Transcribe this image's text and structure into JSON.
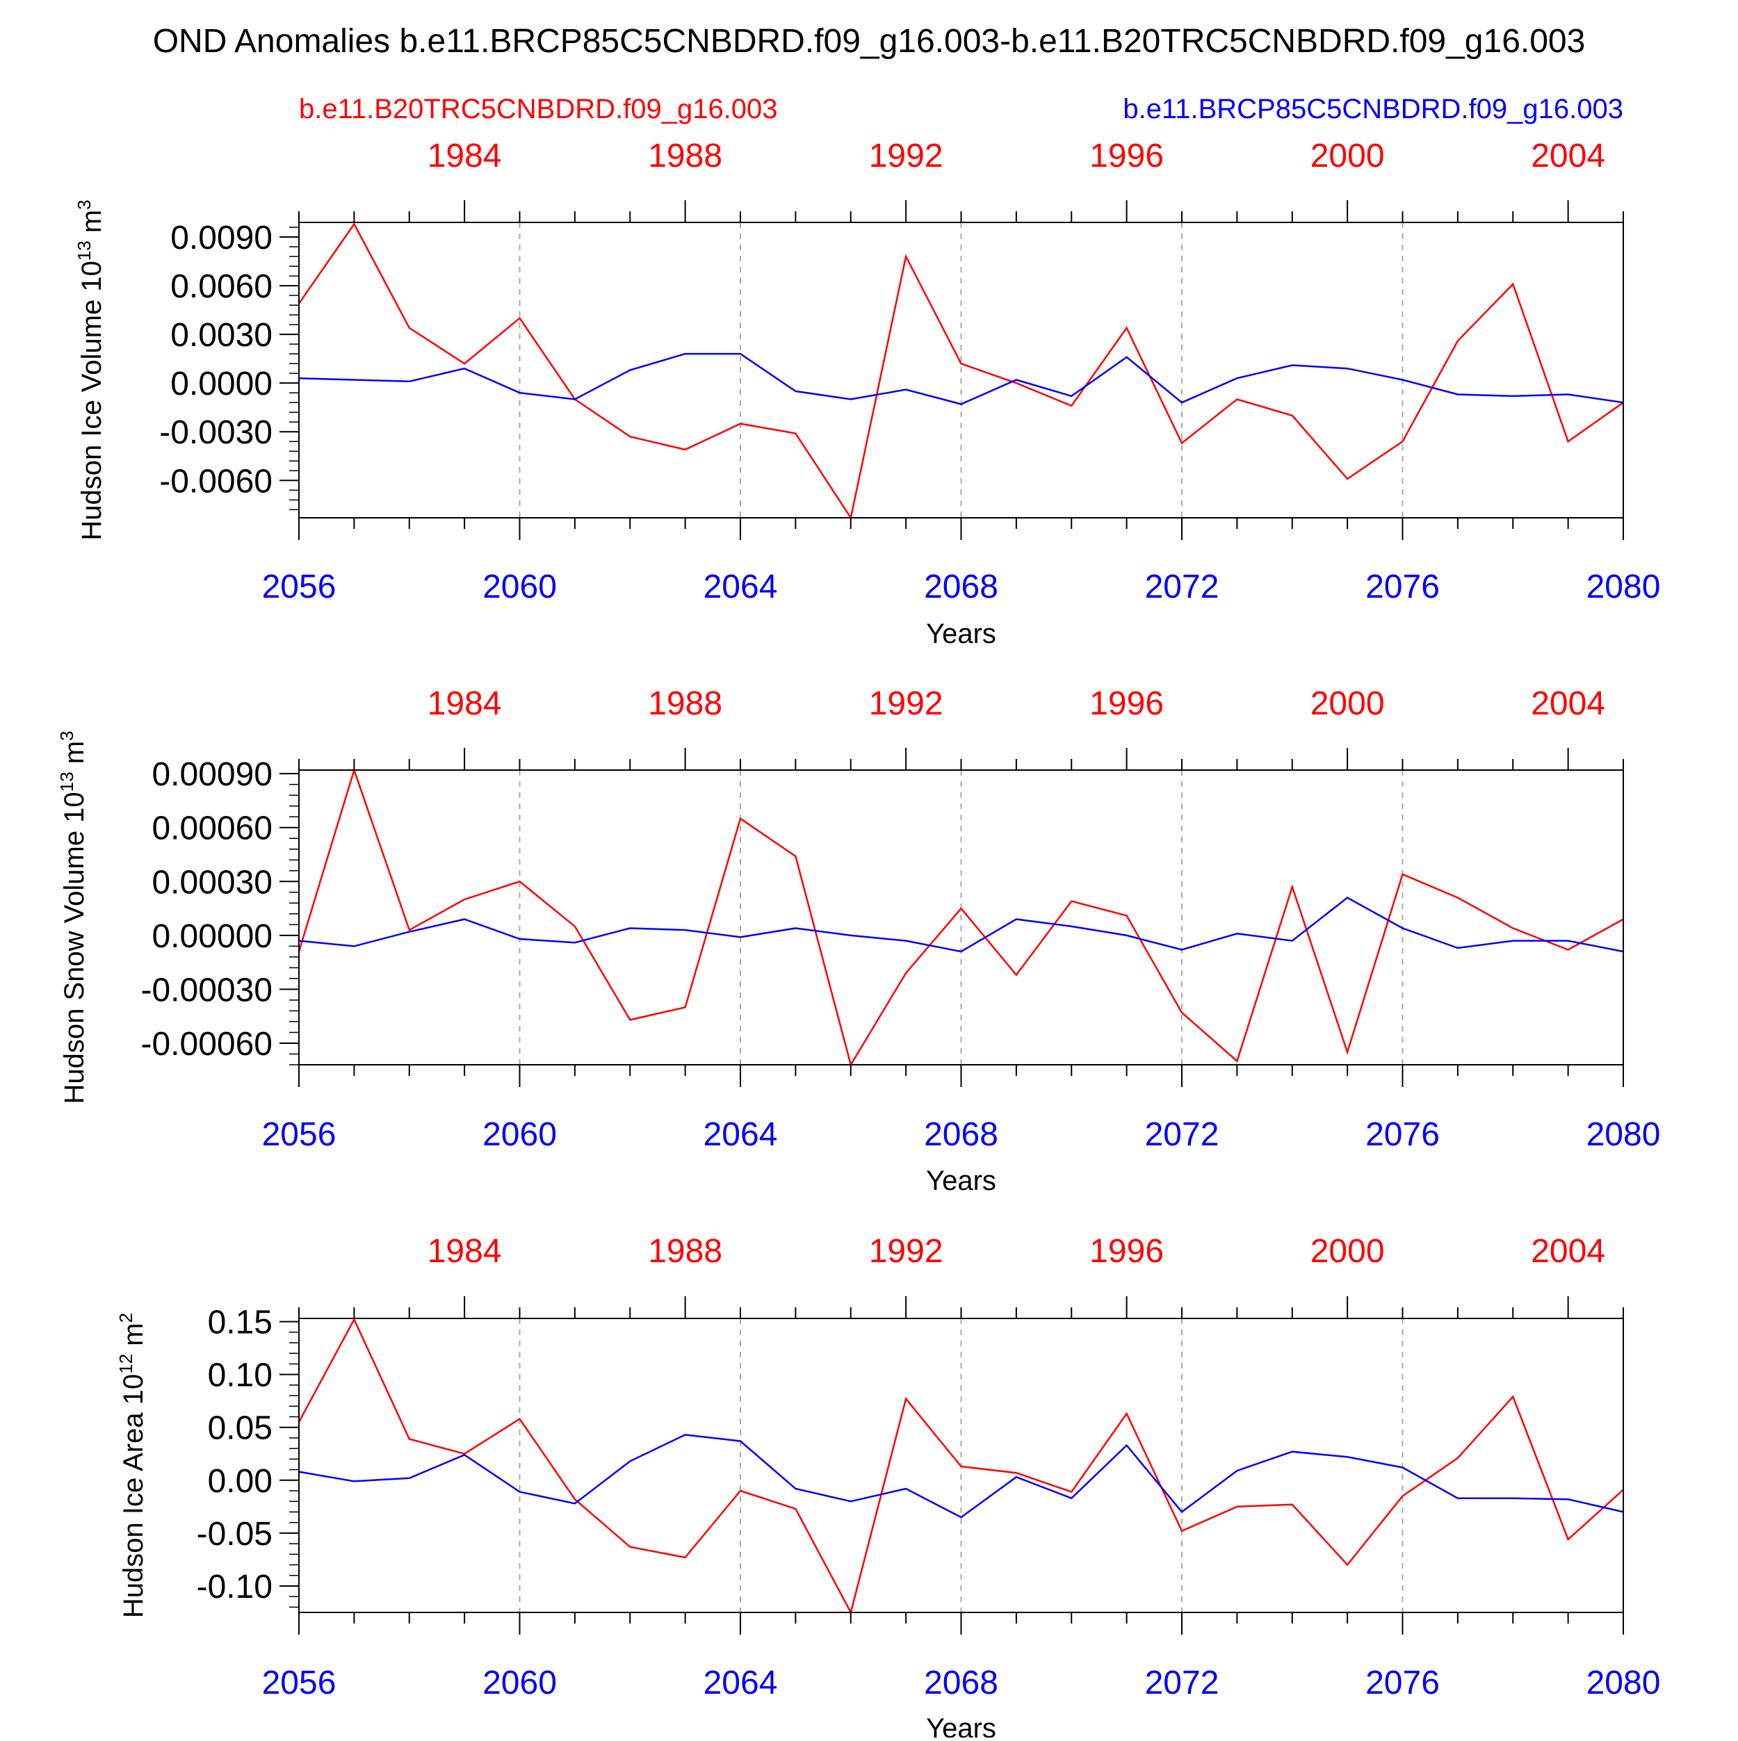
{
  "figure": {
    "title": "OND Anomalies b.e11.BRCP85C5CNBDRD.f09_g16.003-b.e11.B20TRC5CNBDRD.f09_g16.003",
    "legend_left": "b.e11.B20TRC5CNBDRD.f09_g16.003",
    "legend_right": "b.e11.BRCP85C5CNBDRD.f09_g16.003"
  },
  "colors": {
    "historical": "#ff0000",
    "rcp85": "#0000ff",
    "grid": "#aaaaaa",
    "axis": "#000000"
  },
  "chart_data": [
    {
      "type": "line",
      "ylabel_base": "Hudson Ice Volume 10",
      "ylabel_exp": "13",
      "ylabel_unit": " m",
      "ylabel_unit_exp": "3",
      "xlabel": "Years",
      "x": [
        2056,
        2057,
        2058,
        2059,
        2060,
        2061,
        2062,
        2063,
        2064,
        2065,
        2066,
        2067,
        2068,
        2069,
        2070,
        2071,
        2072,
        2073,
        2074,
        2075,
        2076,
        2077,
        2078,
        2079,
        2080
      ],
      "xlim": [
        2056,
        2080
      ],
      "x_ticks": [
        "2056",
        "2060",
        "2064",
        "2068",
        "2072",
        "2076",
        "2080"
      ],
      "top_ticks": [
        "1984",
        "1988",
        "1992",
        "1996",
        "2000",
        "2004"
      ],
      "ylim": [
        -0.0083,
        0.0099
      ],
      "y_ticks": [
        "0.0090",
        "0.0060",
        "0.0030",
        "0.0000",
        "-0.0030",
        "-0.0060"
      ],
      "y_tick_values": [
        0.009,
        0.006,
        0.003,
        0.0,
        -0.003,
        -0.006
      ],
      "y_minor_step": 0.0006,
      "series": [
        {
          "name": "b.e11.B20TRC5CNBDRD.f09_g16.003",
          "color": "#ff0000",
          "values": [
            0.0049,
            0.0098,
            0.0034,
            0.0012,
            0.004,
            -0.001,
            -0.0033,
            -0.0041,
            -0.0025,
            -0.0031,
            -0.0083,
            0.0078,
            0.0012,
            0.0,
            -0.0014,
            0.0034,
            -0.0037,
            -0.001,
            -0.002,
            -0.0059,
            -0.0036,
            0.0026,
            0.0061,
            -0.0036,
            -0.0012
          ]
        },
        {
          "name": "b.e11.BRCP85C5CNBDRD.f09_g16.003",
          "color": "#0000ff",
          "values": [
            0.0003,
            0.0002,
            0.0001,
            0.0009,
            -0.0006,
            -0.001,
            0.0008,
            0.0018,
            0.0018,
            -0.0005,
            -0.001,
            -0.0004,
            -0.0013,
            0.0002,
            -0.0008,
            0.0016,
            -0.0012,
            0.0003,
            0.0011,
            0.0009,
            0.0002,
            -0.0007,
            -0.0008,
            -0.0007,
            -0.0012
          ]
        }
      ]
    },
    {
      "type": "line",
      "ylabel_base": "Hudson Snow Volume 10",
      "ylabel_exp": "13",
      "ylabel_unit": " m",
      "ylabel_unit_exp": "3",
      "xlabel": "Years",
      "x": [
        2056,
        2057,
        2058,
        2059,
        2060,
        2061,
        2062,
        2063,
        2064,
        2065,
        2066,
        2067,
        2068,
        2069,
        2070,
        2071,
        2072,
        2073,
        2074,
        2075,
        2076,
        2077,
        2078,
        2079,
        2080
      ],
      "xlim": [
        2056,
        2080
      ],
      "x_ticks": [
        "2056",
        "2060",
        "2064",
        "2068",
        "2072",
        "2076",
        "2080"
      ],
      "top_ticks": [
        "1984",
        "1988",
        "1992",
        "1996",
        "2000",
        "2004"
      ],
      "ylim": [
        -0.00072,
        0.00092
      ],
      "y_ticks": [
        "0.00090",
        "0.00060",
        "0.00030",
        "0.00000",
        "-0.00030",
        "-0.00060"
      ],
      "y_tick_values": [
        0.0009,
        0.0006,
        0.0003,
        0.0,
        -0.0003,
        -0.0006
      ],
      "y_minor_step": 6e-05,
      "series": [
        {
          "name": "b.e11.B20TRC5CNBDRD.f09_g16.003",
          "color": "#ff0000",
          "values": [
            -9e-05,
            0.00092,
            3e-05,
            0.0002,
            0.0003,
            5e-05,
            -0.00047,
            -0.0004,
            0.00065,
            0.00044,
            -0.00072,
            -0.00021,
            0.00015,
            -0.00022,
            0.00019,
            0.00011,
            -0.00043,
            -0.0007,
            0.00027,
            -0.00065,
            0.00034,
            0.00021,
            4e-05,
            -8e-05,
            9e-05
          ]
        },
        {
          "name": "b.e11.BRCP85C5CNBDRD.f09_g16.003",
          "color": "#0000ff",
          "values": [
            -3e-05,
            -6e-05,
            2e-05,
            9e-05,
            -2e-05,
            -4e-05,
            4e-05,
            3e-05,
            -1e-05,
            4e-05,
            0.0,
            -3e-05,
            -9e-05,
            9e-05,
            5e-05,
            0.0,
            -8e-05,
            1e-05,
            -3e-05,
            0.00021,
            4e-05,
            -7e-05,
            -3e-05,
            -3e-05,
            -9e-05
          ]
        }
      ]
    },
    {
      "type": "line",
      "ylabel_base": "Hudson Ice Area 10",
      "ylabel_exp": "12",
      "ylabel_unit": " m",
      "ylabel_unit_exp": "2",
      "xlabel": "Years",
      "x": [
        2056,
        2057,
        2058,
        2059,
        2060,
        2061,
        2062,
        2063,
        2064,
        2065,
        2066,
        2067,
        2068,
        2069,
        2070,
        2071,
        2072,
        2073,
        2074,
        2075,
        2076,
        2077,
        2078,
        2079,
        2080
      ],
      "xlim": [
        2056,
        2080
      ],
      "x_ticks": [
        "2056",
        "2060",
        "2064",
        "2068",
        "2072",
        "2076",
        "2080"
      ],
      "top_ticks": [
        "1984",
        "1988",
        "1992",
        "1996",
        "2000",
        "2004"
      ],
      "ylim": [
        -0.125,
        0.153
      ],
      "y_ticks": [
        "0.15",
        "0.10",
        "0.05",
        "0.00",
        "-0.05",
        "-0.10"
      ],
      "y_tick_values": [
        0.15,
        0.1,
        0.05,
        0.0,
        -0.05,
        -0.1
      ],
      "y_minor_step": 0.01,
      "series": [
        {
          "name": "b.e11.B20TRC5CNBDRD.f09_g16.003",
          "color": "#ff0000",
          "values": [
            0.055,
            0.152,
            0.039,
            0.025,
            0.058,
            -0.018,
            -0.063,
            -0.073,
            -0.01,
            -0.027,
            -0.125,
            0.077,
            0.013,
            0.007,
            -0.011,
            0.063,
            -0.048,
            -0.025,
            -0.023,
            -0.08,
            -0.015,
            0.021,
            0.079,
            -0.056,
            -0.009
          ]
        },
        {
          "name": "b.e11.BRCP85C5CNBDRD.f09_g16.003",
          "color": "#0000ff",
          "values": [
            0.008,
            -0.001,
            0.002,
            0.024,
            -0.011,
            -0.022,
            0.018,
            0.043,
            0.037,
            -0.008,
            -0.02,
            -0.008,
            -0.035,
            0.003,
            -0.017,
            0.033,
            -0.03,
            0.009,
            0.027,
            0.022,
            0.012,
            -0.017,
            -0.017,
            -0.018,
            -0.03
          ]
        }
      ]
    }
  ]
}
